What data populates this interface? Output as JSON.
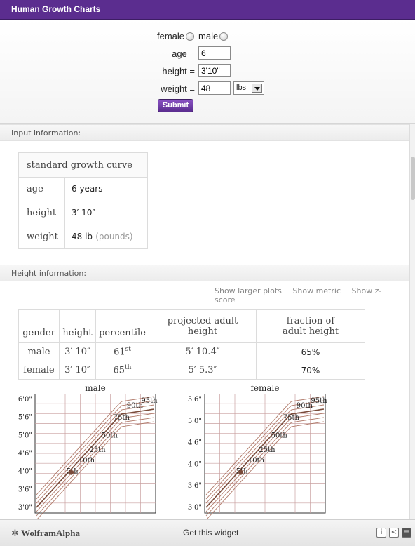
{
  "window": {
    "title": "Human Growth Charts"
  },
  "form": {
    "gender_female": "female",
    "gender_male": "male",
    "age_label": "age =",
    "age_value": "6",
    "height_label": "height =",
    "height_value": "3'10\"",
    "weight_label": "weight =",
    "weight_value": "48",
    "weight_unit": "lbs",
    "submit": "Submit"
  },
  "input_pod": {
    "title": "Input information:",
    "heading": "standard growth curve",
    "rows": [
      {
        "label": "age",
        "value": "6 years",
        "extra": ""
      },
      {
        "label": "height",
        "value": "3′ 10″",
        "extra": ""
      },
      {
        "label": "weight",
        "value": "48 lb",
        "extra": "(pounds)"
      }
    ]
  },
  "height_pod": {
    "title": "Height information:",
    "links": [
      "Show larger plots",
      "Show metric",
      "Show z-score"
    ],
    "headers": [
      "gender",
      "height",
      "percentile",
      "projected adult height",
      "fraction of adult height"
    ],
    "rows": [
      {
        "gender": "male",
        "height": "3′ 10″",
        "pct": "61",
        "pct_sup": "st",
        "projected": "5′ 10.4″",
        "fraction": "65%"
      },
      {
        "gender": "female",
        "height": "3′ 10″",
        "pct": "65",
        "pct_sup": "th",
        "projected": "5′ 5.3″",
        "fraction": "70%"
      }
    ]
  },
  "chart_data": [
    {
      "type": "line",
      "title": "male",
      "yticks": [
        "3'0\"",
        "3'6\"",
        "4'0\"",
        "4'6\"",
        "5'0\"",
        "5'6\"",
        "6'0\""
      ],
      "percentile_labels": [
        "5th",
        "10th",
        "25th",
        "50th",
        "75th",
        "90th",
        "95th"
      ],
      "grid": true
    },
    {
      "type": "line",
      "title": "female",
      "yticks": [
        "3'0\"",
        "3'6\"",
        "4'0\"",
        "4'6\"",
        "5'0\"",
        "5'6\""
      ],
      "percentile_labels": [
        "5th",
        "10th",
        "25th",
        "50th",
        "75th",
        "90th",
        "95th"
      ],
      "grid": true
    }
  ],
  "footer": {
    "logo": "WolframAlpha",
    "get_widget": "Get this widget"
  }
}
